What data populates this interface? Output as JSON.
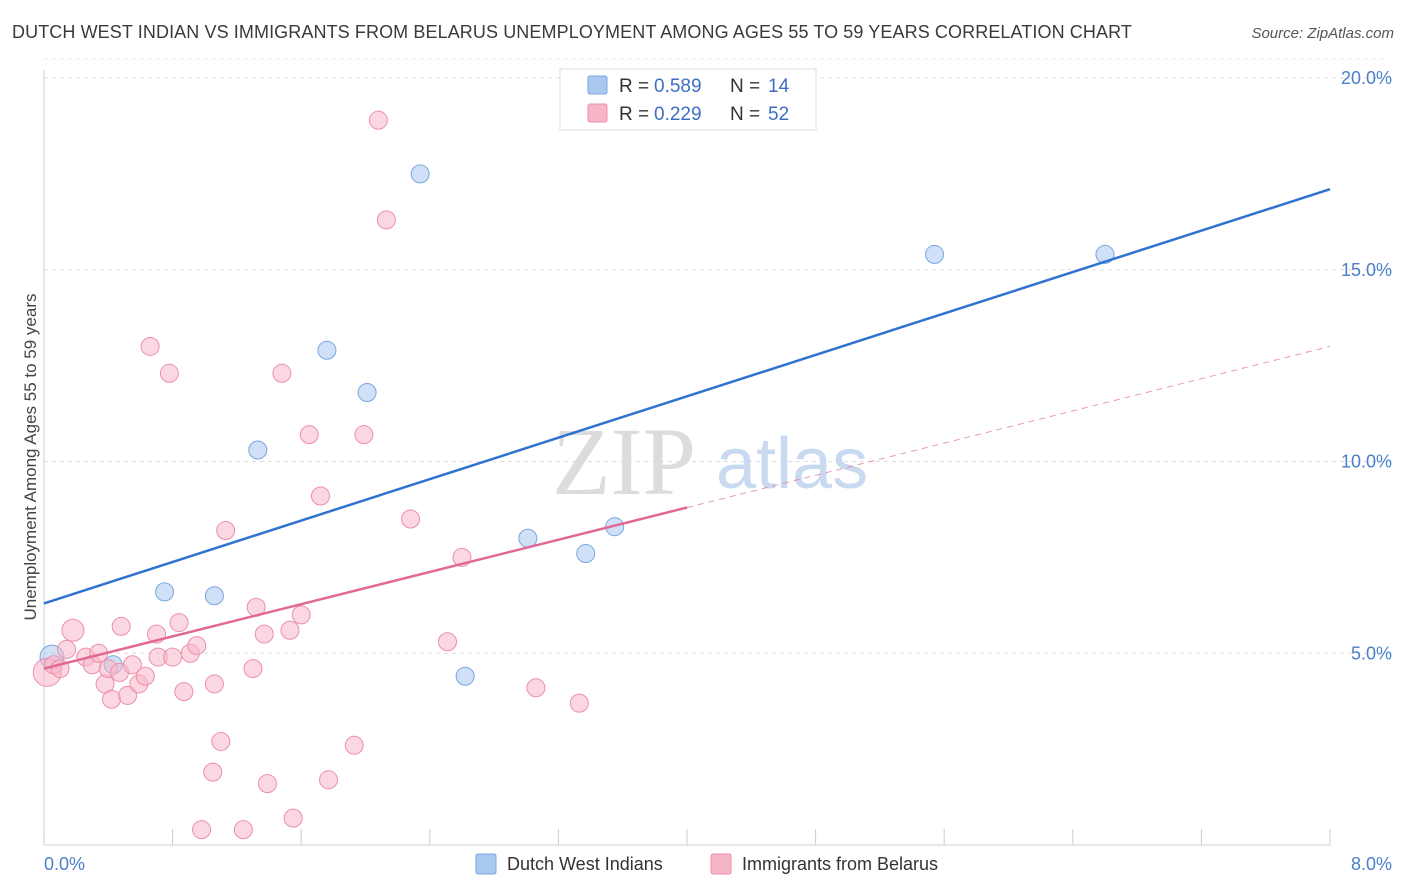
{
  "header": {
    "title": "DUTCH WEST INDIAN VS IMMIGRANTS FROM BELARUS UNEMPLOYMENT AMONG AGES 55 TO 59 YEARS CORRELATION CHART",
    "source": "Source: ZipAtlas.com"
  },
  "watermark": {
    "zip": "ZIP",
    "atlas": "atlas"
  },
  "legend": {
    "rows": [
      {
        "r_label": "R =",
        "r_value": "0.589",
        "n_label": "N =",
        "n_value": "14",
        "color": "#a9c8f0"
      },
      {
        "r_label": "R =",
        "r_value": "0.229",
        "n_label": "N =",
        "n_value": "52",
        "color": "#f7b6c8"
      }
    ]
  },
  "bottom_legend": {
    "items": [
      {
        "label": "Dutch West Indians",
        "color": "#a9c8f0"
      },
      {
        "label": "Immigrants from Belarus",
        "color": "#f7b6c8"
      }
    ]
  },
  "chart_data": {
    "type": "scatter",
    "title": "DUTCH WEST INDIAN VS IMMIGRANTS FROM BELARUS UNEMPLOYMENT AMONG AGES 55 TO 59 YEARS CORRELATION CHART",
    "xlabel": "",
    "ylabel": "Unemployment Among Ages 55 to 59 years",
    "xlim": [
      0,
      8
    ],
    "ylim": [
      0,
      20
    ],
    "x_tick_labels": [
      "0.0%",
      "8.0%"
    ],
    "y_ticks": [
      5,
      10,
      15,
      20
    ],
    "y_tick_labels": [
      "5.0%",
      "10.0%",
      "15.0%",
      "20.0%"
    ],
    "grid": true,
    "legend_position": "top-center",
    "series": [
      {
        "name": "Dutch West Indians",
        "color": "#a9c8f0",
        "line_color": "#2f72d0",
        "points": [
          {
            "x": 0.05,
            "y": 4.9
          },
          {
            "x": 0.43,
            "y": 4.7
          },
          {
            "x": 0.75,
            "y": 6.6
          },
          {
            "x": 1.06,
            "y": 6.5
          },
          {
            "x": 1.33,
            "y": 10.3
          },
          {
            "x": 1.76,
            "y": 12.9
          },
          {
            "x": 2.01,
            "y": 11.8
          },
          {
            "x": 2.34,
            "y": 17.5
          },
          {
            "x": 2.62,
            "y": 4.4
          },
          {
            "x": 3.01,
            "y": 8.0
          },
          {
            "x": 3.37,
            "y": 7.6
          },
          {
            "x": 3.55,
            "y": 8.3
          },
          {
            "x": 5.54,
            "y": 15.4
          },
          {
            "x": 6.6,
            "y": 15.4
          }
        ],
        "trend": {
          "x0": 0,
          "y0": 6.3,
          "x1": 8,
          "y1": 17.1,
          "style": "solid"
        }
      },
      {
        "name": "Immigrants from Belarus",
        "color": "#f7b6c8",
        "line_color": "#e06a94",
        "points": [
          {
            "x": 0.02,
            "y": 4.5
          },
          {
            "x": 0.06,
            "y": 4.7
          },
          {
            "x": 0.1,
            "y": 4.6
          },
          {
            "x": 0.14,
            "y": 5.1
          },
          {
            "x": 0.18,
            "y": 5.6
          },
          {
            "x": 0.26,
            "y": 4.9
          },
          {
            "x": 0.3,
            "y": 4.7
          },
          {
            "x": 0.34,
            "y": 5.0
          },
          {
            "x": 0.38,
            "y": 4.2
          },
          {
            "x": 0.4,
            "y": 4.6
          },
          {
            "x": 0.42,
            "y": 3.8
          },
          {
            "x": 0.47,
            "y": 4.5
          },
          {
            "x": 0.48,
            "y": 5.7
          },
          {
            "x": 0.52,
            "y": 3.9
          },
          {
            "x": 0.55,
            "y": 4.7
          },
          {
            "x": 0.59,
            "y": 4.2
          },
          {
            "x": 0.63,
            "y": 4.4
          },
          {
            "x": 0.66,
            "y": 13.0
          },
          {
            "x": 0.7,
            "y": 5.5
          },
          {
            "x": 0.71,
            "y": 4.9
          },
          {
            "x": 0.78,
            "y": 12.3
          },
          {
            "x": 0.8,
            "y": 4.9
          },
          {
            "x": 0.84,
            "y": 5.8
          },
          {
            "x": 0.87,
            "y": 4.0
          },
          {
            "x": 0.91,
            "y": 5.0
          },
          {
            "x": 0.95,
            "y": 5.2
          },
          {
            "x": 0.98,
            "y": 0.4
          },
          {
            "x": 1.05,
            "y": 1.9
          },
          {
            "x": 1.06,
            "y": 4.2
          },
          {
            "x": 1.1,
            "y": 2.7
          },
          {
            "x": 1.13,
            "y": 8.2
          },
          {
            "x": 1.24,
            "y": 0.4
          },
          {
            "x": 1.3,
            "y": 4.6
          },
          {
            "x": 1.32,
            "y": 6.2
          },
          {
            "x": 1.37,
            "y": 5.5
          },
          {
            "x": 1.39,
            "y": 1.6
          },
          {
            "x": 1.48,
            "y": 12.3
          },
          {
            "x": 1.53,
            "y": 5.6
          },
          {
            "x": 1.55,
            "y": 0.7
          },
          {
            "x": 1.6,
            "y": 6.0
          },
          {
            "x": 1.65,
            "y": 10.7
          },
          {
            "x": 1.72,
            "y": 9.1
          },
          {
            "x": 1.77,
            "y": 1.7
          },
          {
            "x": 1.93,
            "y": 2.6
          },
          {
            "x": 1.99,
            "y": 10.7
          },
          {
            "x": 2.08,
            "y": 18.9
          },
          {
            "x": 2.13,
            "y": 16.3
          },
          {
            "x": 2.28,
            "y": 8.5
          },
          {
            "x": 2.51,
            "y": 5.3
          },
          {
            "x": 2.6,
            "y": 7.5
          },
          {
            "x": 3.06,
            "y": 4.1
          },
          {
            "x": 3.33,
            "y": 3.7
          }
        ],
        "trend": {
          "x0": 0,
          "y0": 4.6,
          "x1": 4.0,
          "y1": 8.8,
          "style": "solid",
          "ext_x1": 8,
          "ext_y1": 13.0,
          "ext_style": "dashed"
        }
      }
    ]
  }
}
